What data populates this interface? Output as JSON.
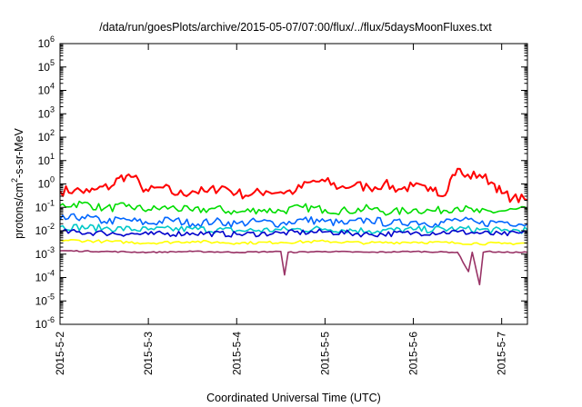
{
  "chart_data": {
    "type": "line",
    "title": "/data/run/goesPlots/archive/2015-05-07/07:00/flux/../flux/5daysMoonFluxes.txt",
    "xlabel": "Coordinated Universal Time (UTC)",
    "ylabel": "protons/cm²-s-sr-MeV",
    "ylabel_parts": {
      "pre": "protons/cm",
      "sup": "2",
      "post": "-s-sr-MeV"
    },
    "yscale": "log",
    "xlim": [
      "2015-05-02",
      "2015-05-07 07:00"
    ],
    "ylim": [
      1e-06,
      1000000.0
    ],
    "xticks": [
      "2015-5-2",
      "2015-5-3",
      "2015-5-4",
      "2015-5-5",
      "2015-5-6",
      "2015-5-7"
    ],
    "yticks": [
      {
        "base": "10",
        "exp": "6"
      },
      {
        "base": "10",
        "exp": "5"
      },
      {
        "base": "10",
        "exp": "4"
      },
      {
        "base": "10",
        "exp": "3"
      },
      {
        "base": "10",
        "exp": "2"
      },
      {
        "base": "10",
        "exp": "1"
      },
      {
        "base": "10",
        "exp": "0"
      },
      {
        "base": "10",
        "exp": "-1"
      },
      {
        "base": "10",
        "exp": "-2"
      },
      {
        "base": "10",
        "exp": "-3"
      },
      {
        "base": "10",
        "exp": "-4"
      },
      {
        "base": "10",
        "exp": "-5"
      },
      {
        "base": "10",
        "exp": "-6"
      }
    ],
    "grid": false,
    "legend": "none",
    "series": [
      {
        "color": "#ff0000",
        "x": [
          "2015-05-02 00:00",
          "2015-05-02 04:00",
          "2015-05-02 08:00",
          "2015-05-02 10:00",
          "2015-05-02 14:00",
          "2015-05-02 16:00",
          "2015-05-02 18:00",
          "2015-05-02 20:00",
          "2015-05-02 22:00",
          "2015-05-03 00:00",
          "2015-05-03 04:00",
          "2015-05-03 08:00",
          "2015-05-03 12:00",
          "2015-05-03 16:00",
          "2015-05-03 20:00",
          "2015-05-04 00:00",
          "2015-05-04 04:00",
          "2015-05-04 08:00",
          "2015-05-04 12:00",
          "2015-05-04 16:00",
          "2015-05-04 20:00",
          "2015-05-05 00:00",
          "2015-05-05 04:00",
          "2015-05-05 08:00",
          "2015-05-05 12:00",
          "2015-05-05 16:00",
          "2015-05-05 20:00",
          "2015-05-06 00:00",
          "2015-05-06 04:00",
          "2015-05-06 06:00",
          "2015-05-06 08:00",
          "2015-05-06 10:00",
          "2015-05-06 12:00",
          "2015-05-06 14:00",
          "2015-05-06 18:00",
          "2015-05-06 22:00",
          "2015-05-07 00:00",
          "2015-05-07 03:00",
          "2015-05-07 07:00"
        ],
        "y": [
          0.5,
          0.55,
          0.45,
          0.6,
          0.8,
          1.8,
          2.2,
          2.0,
          0.8,
          0.5,
          0.7,
          0.35,
          0.5,
          0.45,
          0.8,
          0.4,
          0.35,
          0.5,
          0.45,
          0.5,
          1.2,
          1.3,
          0.7,
          0.9,
          0.7,
          1.0,
          0.6,
          0.8,
          0.5,
          0.7,
          0.3,
          1.5,
          4.5,
          2.0,
          2.5,
          1.0,
          0.4,
          0.25,
          0.2
        ]
      },
      {
        "color": "#00dd00",
        "x": [
          "2015-05-02 00:00",
          "2015-05-02 06:00",
          "2015-05-02 12:00",
          "2015-05-02 18:00",
          "2015-05-03 00:00",
          "2015-05-03 06:00",
          "2015-05-03 12:00",
          "2015-05-03 18:00",
          "2015-05-04 00:00",
          "2015-05-04 06:00",
          "2015-05-04 12:00",
          "2015-05-04 18:00",
          "2015-05-05 00:00",
          "2015-05-05 06:00",
          "2015-05-05 12:00",
          "2015-05-05 18:00",
          "2015-05-06 00:00",
          "2015-05-06 06:00",
          "2015-05-06 12:00",
          "2015-05-06 18:00",
          "2015-05-07 00:00",
          "2015-05-07 07:00"
        ],
        "y": [
          0.12,
          0.15,
          0.09,
          0.11,
          0.08,
          0.1,
          0.07,
          0.09,
          0.06,
          0.08,
          0.07,
          0.1,
          0.08,
          0.07,
          0.09,
          0.06,
          0.08,
          0.07,
          0.1,
          0.06,
          0.07,
          0.08
        ]
      },
      {
        "color": "#0066ff",
        "x": [
          "2015-05-02 00:00",
          "2015-05-02 06:00",
          "2015-05-02 12:00",
          "2015-05-02 18:00",
          "2015-05-03 00:00",
          "2015-05-03 06:00",
          "2015-05-03 12:00",
          "2015-05-03 18:00",
          "2015-05-04 00:00",
          "2015-05-04 06:00",
          "2015-05-04 12:00",
          "2015-05-04 18:00",
          "2015-05-05 00:00",
          "2015-05-05 06:00",
          "2015-05-05 12:00",
          "2015-05-05 18:00",
          "2015-05-06 00:00",
          "2015-05-06 06:00",
          "2015-05-06 12:00",
          "2015-05-06 18:00",
          "2015-05-07 00:00",
          "2015-05-07 07:00"
        ],
        "y": [
          0.03,
          0.04,
          0.025,
          0.03,
          0.02,
          0.03,
          0.02,
          0.025,
          0.02,
          0.025,
          0.02,
          0.03,
          0.025,
          0.02,
          0.03,
          0.02,
          0.025,
          0.02,
          0.03,
          0.02,
          0.025,
          0.02
        ]
      },
      {
        "color": "#00c8c8",
        "x": [
          "2015-05-02 00:00",
          "2015-05-02 12:00",
          "2015-05-03 00:00",
          "2015-05-03 12:00",
          "2015-05-04 00:00",
          "2015-05-04 12:00",
          "2015-05-05 00:00",
          "2015-05-05 12:00",
          "2015-05-06 00:00",
          "2015-05-06 12:00",
          "2015-05-07 00:00",
          "2015-05-07 07:00"
        ],
        "y": [
          0.015,
          0.013,
          0.011,
          0.012,
          0.01,
          0.011,
          0.012,
          0.01,
          0.011,
          0.012,
          0.01,
          0.011
        ]
      },
      {
        "color": "#0000cc",
        "x": [
          "2015-05-02 00:00",
          "2015-05-02 12:00",
          "2015-05-03 00:00",
          "2015-05-03 12:00",
          "2015-05-04 00:00",
          "2015-05-04 12:00",
          "2015-05-05 00:00",
          "2015-05-05 12:00",
          "2015-05-06 00:00",
          "2015-05-06 12:00",
          "2015-05-07 00:00",
          "2015-05-07 07:00"
        ],
        "y": [
          0.009,
          0.008,
          0.007,
          0.008,
          0.007,
          0.008,
          0.009,
          0.007,
          0.008,
          0.009,
          0.007,
          0.008
        ]
      },
      {
        "color": "#ffff00",
        "x": [
          "2015-05-02 00:00",
          "2015-05-02 12:00",
          "2015-05-03 00:00",
          "2015-05-03 12:00",
          "2015-05-04 00:00",
          "2015-05-04 12:00",
          "2015-05-05 00:00",
          "2015-05-05 12:00",
          "2015-05-06 00:00",
          "2015-05-06 12:00",
          "2015-05-07 00:00",
          "2015-05-07 07:00"
        ],
        "y": [
          0.004,
          0.0035,
          0.003,
          0.0035,
          0.003,
          0.0032,
          0.0035,
          0.003,
          0.0033,
          0.003,
          0.0028,
          0.003
        ]
      },
      {
        "color": "#993366",
        "x": [
          "2015-05-02 00:00",
          "2015-05-02 12:00",
          "2015-05-03 00:00",
          "2015-05-03 12:00",
          "2015-05-04 00:00",
          "2015-05-04 12:00",
          "2015-05-04 13:00",
          "2015-05-04 14:00",
          "2015-05-05 00:00",
          "2015-05-05 12:00",
          "2015-05-06 00:00",
          "2015-05-06 12:00",
          "2015-05-06 15:00",
          "2015-05-06 16:00",
          "2015-05-06 18:00",
          "2015-05-06 19:00",
          "2015-05-06 20:00",
          "2015-05-07 00:00",
          "2015-05-07 07:00"
        ],
        "y": [
          0.0014,
          0.0013,
          0.0012,
          0.0013,
          0.0012,
          0.0013,
          0.00013,
          0.0012,
          0.0013,
          0.0012,
          0.0013,
          0.0012,
          0.00018,
          0.0012,
          5e-05,
          0.0012,
          0.0013,
          0.0012,
          0.0012
        ]
      }
    ]
  }
}
